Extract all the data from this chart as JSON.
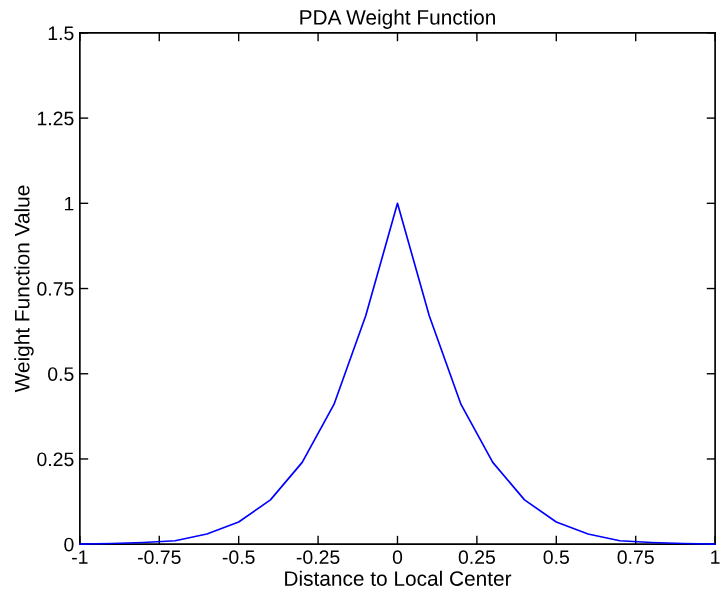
{
  "chart_data": {
    "type": "line",
    "title": "PDA Weight Function",
    "xlabel": "Distance to Local Center",
    "ylabel": "Weight Function Value",
    "x": [
      -1,
      -0.9,
      -0.8,
      -0.7,
      -0.6,
      -0.5,
      -0.4,
      -0.3,
      -0.2,
      -0.1,
      0,
      0.1,
      0.2,
      0.3,
      0.4,
      0.5,
      0.6,
      0.7,
      0.8,
      0.9,
      1
    ],
    "series": [
      {
        "color": "#0000ff",
        "values": [
          0,
          0.002,
          0.005,
          0.01,
          0.03,
          0.065,
          0.13,
          0.24,
          0.41,
          0.67,
          1,
          0.67,
          0.41,
          0.24,
          0.13,
          0.065,
          0.03,
          0.01,
          0.005,
          0.002,
          0
        ]
      }
    ],
    "xlim": [
      -1,
      1
    ],
    "ylim": [
      0,
      1.5
    ],
    "xticks": [
      -1,
      -0.75,
      -0.5,
      -0.25,
      0,
      0.25,
      0.5,
      0.75,
      1
    ],
    "yticks": [
      0,
      0.25,
      0.5,
      0.75,
      1,
      1.25,
      1.5
    ],
    "grid": false,
    "legend": false,
    "marker": "none",
    "line_style": "solid"
  }
}
